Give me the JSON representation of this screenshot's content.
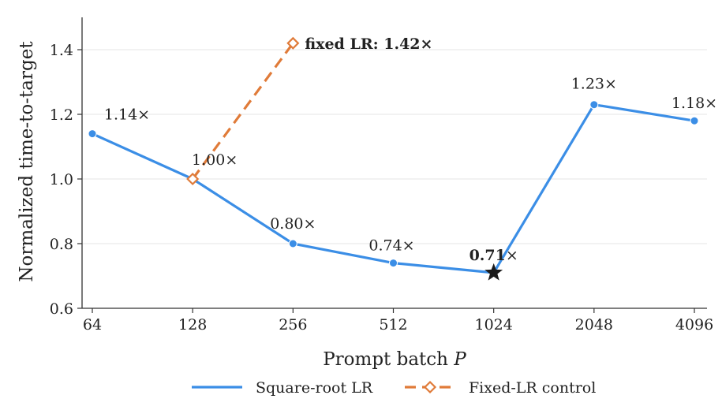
{
  "chart_data": {
    "type": "line",
    "xlabel": "Prompt batch",
    "xlabel_var": "P",
    "ylabel": "Normalized time-to-target",
    "ylim": [
      0.6,
      1.5
    ],
    "yticks": [
      0.6,
      0.8,
      1.0,
      1.2,
      1.4
    ],
    "ytick_labels": [
      "0.6",
      "0.8",
      "1.0",
      "1.2",
      "1.4"
    ],
    "x_scale": "log2",
    "categories": [
      "64",
      "128",
      "256",
      "512",
      "1024",
      "2048",
      "4096"
    ],
    "grid": "horizontal",
    "legend_position": "bottom",
    "series": [
      {
        "name": "Square-root LR",
        "color": "#3b8ee6",
        "marker": "circle",
        "line": "solid",
        "x": [
          64,
          128,
          256,
          512,
          1024,
          2048,
          4096
        ],
        "values": [
          1.14,
          1.0,
          0.8,
          0.74,
          0.71,
          1.23,
          1.18
        ],
        "labels": [
          "1.14×",
          "1.00×",
          "0.80×",
          "0.74×",
          "0.71×",
          "1.23×",
          "1.18×"
        ],
        "best_index": 4
      },
      {
        "name": "Fixed-LR control",
        "color": "#e07b39",
        "marker": "diamond-open",
        "line": "dashed",
        "x": [
          128,
          256
        ],
        "values": [
          1.0,
          1.42
        ],
        "annotation": "fixed LR: 1.42×"
      }
    ]
  }
}
